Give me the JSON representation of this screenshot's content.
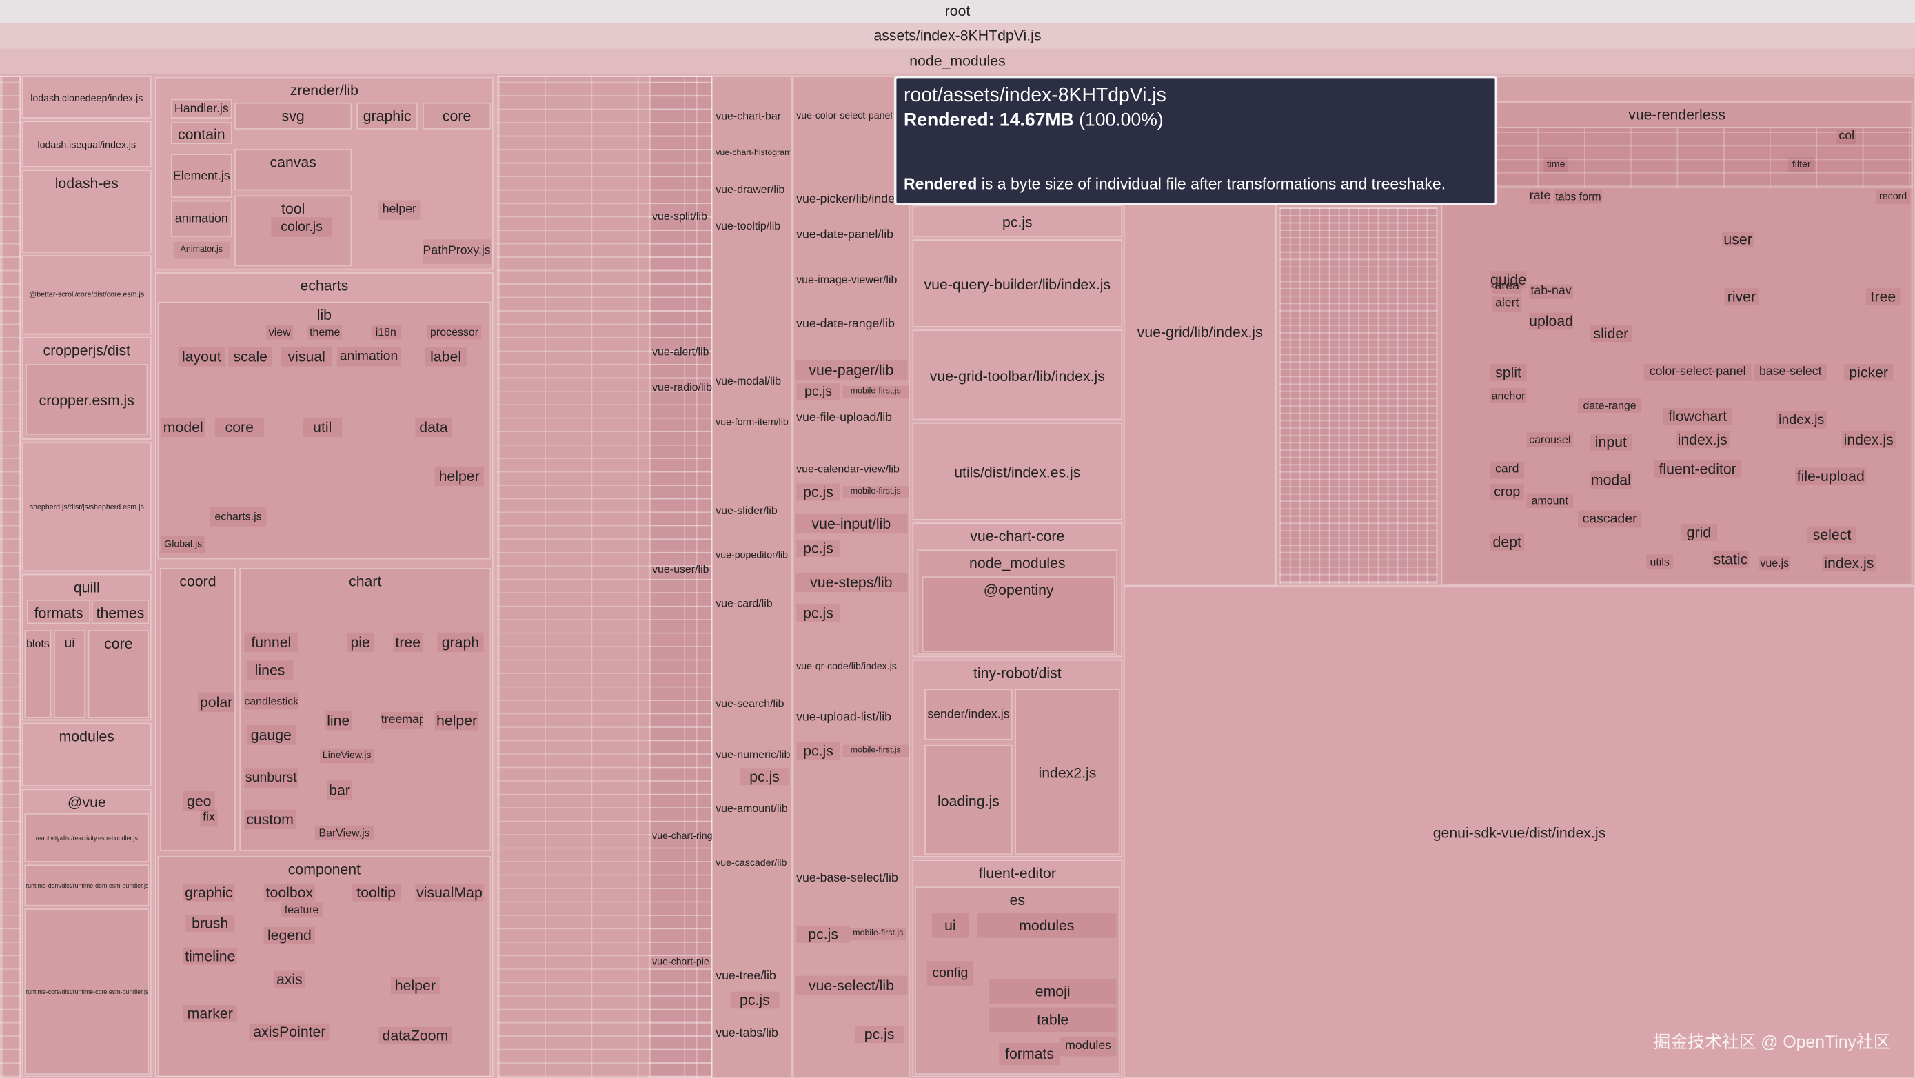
{
  "header": {
    "root": "root",
    "asset": "assets/index-8KHTdpVi.js",
    "node_modules": "node_modules"
  },
  "tooltip": {
    "path": "root/assets/index-8KHTdpVi.js",
    "rendered_label": "Rendered:",
    "rendered_size": "14.67MB",
    "rendered_percent": "(100.00%)",
    "note_bold": "Rendered",
    "note": "is a byte size of individual file after transformations and treeshake."
  },
  "watermark": "掘金技术社区 @ OpenTiny社区",
  "nodes": [
    "lodash.clonedeep/index.js",
    "lodash.isequal/index.js",
    "lodash-es",
    "@better-scroll/core/dist/core.esm.js",
    "cropperjs/dist",
    "cropper.esm.js",
    "shepherd.js/dist/js/shepherd.esm.js",
    "quill",
    "formats",
    "themes",
    "blots",
    "ui",
    "core",
    "modules",
    "@vue",
    "reactivity/dist/reactivity.esm-bundler.js",
    "runtime-dom/dist/runtime-dom.esm-bundler.js",
    "runtime-core/dist/runtime-core.esm-bundler.js",
    "zrender/lib",
    "Handler.js",
    "contain",
    "svg",
    "graphic",
    "core",
    "Element.js",
    "canvas",
    "animation",
    "tool",
    "color.js",
    "helper",
    "PathProxy.js",
    "Animator.js",
    "echarts",
    "lib",
    "layout",
    "scale",
    "visual",
    "animation",
    "label",
    "model",
    "core",
    "util",
    "data",
    "helper",
    "echarts.js",
    "Global.js",
    "view",
    "theme",
    "i18n",
    "processor",
    "coord",
    "polar",
    "geo",
    "fix",
    "chart",
    "funnel",
    "pie",
    "tree",
    "graph",
    "lines",
    "candlestick",
    "line",
    "treemap",
    "helper",
    "gauge",
    "sunburst",
    "bar",
    "custom",
    "LineView.js",
    "BarView.js",
    "component",
    "graphic",
    "toolbox",
    "tooltip",
    "visualMap",
    "brush",
    "legend",
    "timeline",
    "axis",
    "helper",
    "marker",
    "axisPointer",
    "dataZoom",
    "feature",
    "vue-chart-bar",
    "vue-chart-histogram",
    "vue-drawer/lib",
    "vue-split/lib",
    "vue-tooltip/lib",
    "vue-alert/lib",
    "vue-radio/lib",
    "vue-modal/lib",
    "vue-form-item/lib",
    "vue-slider/lib",
    "vue-popeditor/lib",
    "vue-user/lib",
    "vue-card/lib",
    "vue-search/lib",
    "vue-numeric/lib",
    "vue-amount/lib",
    "vue-cascader/lib",
    "vue-tree/lib",
    "vue-tabs/lib",
    "vue-chart-ring",
    "vue-chart-pie",
    "vue-color-select-panel",
    "vue-picker/lib/index.js",
    "vue-date-panel/lib",
    "vue-image-viewer/lib",
    "vue-date-range/lib",
    "vue-pager/lib",
    "vue-file-upload/lib",
    "vue-calendar-view/lib",
    "vue-input/lib",
    "vue-steps/lib",
    "vue-qr-code/lib/index.js",
    "vue-upload-list/lib",
    "vue-base-select/lib",
    "vue-select/lib",
    "pc.js",
    "pc.js",
    "pc.js",
    "pc.js",
    "pc.js",
    "pc.js",
    "pc.js",
    "pc.js",
    "pc.js",
    "mobile-first.js",
    "mobile-first.js",
    "mobile-first.js",
    "mobile-first.js",
    "pc.js",
    "vue-query-builder/lib/index.js",
    "vue-grid-toolbar/lib/index.js",
    "utils/dist/index.es.js",
    "vue-chart-core",
    "node_modules",
    "@opentiny",
    "tiny-robot/dist",
    "sender/index.js",
    "loading.js",
    "index2.js",
    "fluent-editor",
    "es",
    "ui",
    "modules",
    "config",
    "emoji",
    "table",
    "formats",
    "modules",
    "vue-grid/lib/index.js",
    "vue-renderless",
    "col",
    "time",
    "filter",
    "record",
    "rate",
    "tabs",
    "form",
    "user",
    "guide",
    "tab-nav",
    "river",
    "tree",
    "upload",
    "slider",
    "split",
    "color-select-panel",
    "base-select",
    "picker",
    "flowchart",
    "index.js",
    "index.js",
    "index.js",
    "input",
    "card",
    "fluent-editor",
    "file-upload",
    "modal",
    "crop",
    "amount",
    "cascader",
    "dept",
    "grid",
    "select",
    "utils",
    "static",
    "vue.js",
    "index.js",
    "date-range",
    "carousel",
    "anchor",
    "area",
    "alert",
    "genui-sdk-vue/dist/index.js"
  ]
}
